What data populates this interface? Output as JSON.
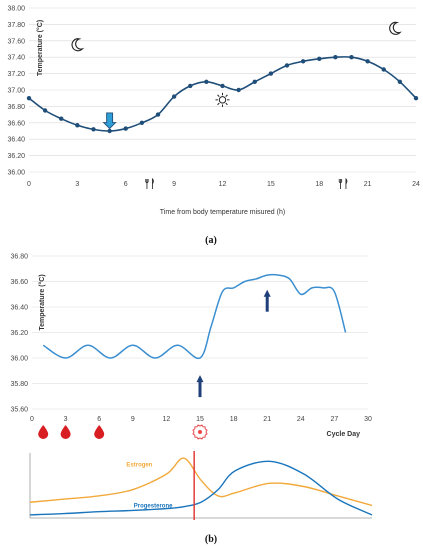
{
  "chart_data": [
    {
      "panel": "(a)",
      "type": "line",
      "xlabel": "Time from body temperature misured (h)",
      "ylabel": "Temperature (°C)",
      "xlim": [
        0,
        24
      ],
      "ylim": [
        36.0,
        38.0
      ],
      "xticks": [
        "0",
        "3",
        "6",
        "9",
        "12",
        "15",
        "18",
        "21",
        "24"
      ],
      "yticks": [
        "36.00",
        "36.20",
        "36.40",
        "36.60",
        "36.80",
        "37.00",
        "37.20",
        "37.40",
        "37.60",
        "37.80",
        "38.00"
      ],
      "grid": true,
      "series": [
        {
          "x": [
            0,
            1,
            2,
            3,
            4,
            5,
            6,
            7,
            8,
            9,
            10,
            11,
            12,
            13,
            14,
            15,
            16,
            17,
            18,
            19,
            20,
            21,
            22,
            23,
            24
          ],
          "y": [
            36.9,
            36.75,
            36.65,
            36.57,
            36.52,
            36.5,
            36.53,
            36.6,
            36.7,
            36.92,
            37.05,
            37.1,
            37.05,
            37.0,
            37.1,
            37.2,
            37.3,
            37.35,
            37.38,
            37.4,
            37.4,
            37.35,
            37.25,
            37.1,
            36.9
          ],
          "color": "#1f4e79"
        }
      ],
      "annotations": [
        {
          "type": "moon-icon",
          "x": 3,
          "y": 37.55
        },
        {
          "type": "moon-icon",
          "x": 22.7,
          "y": 37.75
        },
        {
          "type": "sun-icon",
          "x": 12,
          "y": 36.88
        },
        {
          "type": "cutlery-icon",
          "x": 7.5,
          "y": 35.85
        },
        {
          "type": "cutlery-icon",
          "x": 19.5,
          "y": 35.85
        },
        {
          "type": "down-arrow-icon",
          "x": 5,
          "y": 36.72
        }
      ]
    },
    {
      "panel": "(b)",
      "type": "line",
      "xlabel": "Cycle Day",
      "ylabel": "Temperature (°C)",
      "xlim": [
        0,
        30
      ],
      "ylim": [
        35.6,
        36.8
      ],
      "xticks": [
        "0",
        "3",
        "6",
        "9",
        "12",
        "15",
        "18",
        "21",
        "24",
        "27",
        "30"
      ],
      "yticks": [
        "35.60",
        "35.80",
        "36.00",
        "36.20",
        "36.40",
        "36.60",
        "36.80"
      ],
      "grid": true,
      "series": [
        {
          "x": [
            1,
            3,
            5,
            7,
            9,
            11,
            13,
            15,
            16,
            17,
            18,
            19,
            20,
            21,
            22,
            23,
            24,
            25,
            26,
            27,
            28
          ],
          "y": [
            36.1,
            36.0,
            36.1,
            36.0,
            36.1,
            36.0,
            36.1,
            36.0,
            36.25,
            36.52,
            36.55,
            36.6,
            36.62,
            36.65,
            36.65,
            36.62,
            36.5,
            36.55,
            36.55,
            36.52,
            36.2
          ],
          "color": "#3b8fd0"
        }
      ],
      "annotations": [
        {
          "type": "up-arrow-icon",
          "x": 15,
          "y": 35.85
        },
        {
          "type": "up-arrow-icon",
          "x": 21,
          "y": 36.52
        }
      ],
      "markers": [
        {
          "type": "blood-drop-icon",
          "day": 1
        },
        {
          "type": "blood-drop-icon",
          "day": 3
        },
        {
          "type": "blood-drop-icon",
          "day": 6
        },
        {
          "type": "ovum-icon",
          "day": 15
        }
      ]
    },
    {
      "panel": "(b) hormones",
      "type": "line",
      "series": [
        {
          "name": "Estrogen",
          "color": "#f2a93b",
          "x": [
            0,
            0.1,
            0.2,
            0.3,
            0.4,
            0.45,
            0.5,
            0.55,
            0.6,
            0.7,
            0.8,
            0.9,
            1.0
          ],
          "y": [
            0.25,
            0.3,
            0.35,
            0.45,
            0.7,
            0.95,
            0.6,
            0.35,
            0.4,
            0.55,
            0.5,
            0.35,
            0.2
          ]
        },
        {
          "name": "Progesterone",
          "color": "#1b75bc",
          "x": [
            0,
            0.1,
            0.2,
            0.3,
            0.4,
            0.45,
            0.5,
            0.55,
            0.6,
            0.7,
            0.8,
            0.9,
            1.0
          ],
          "y": [
            0.05,
            0.07,
            0.1,
            0.12,
            0.15,
            0.18,
            0.25,
            0.45,
            0.75,
            0.9,
            0.7,
            0.3,
            0.05
          ]
        }
      ],
      "marker_line": {
        "x": 0.48,
        "color": "#e0302f"
      }
    }
  ]
}
